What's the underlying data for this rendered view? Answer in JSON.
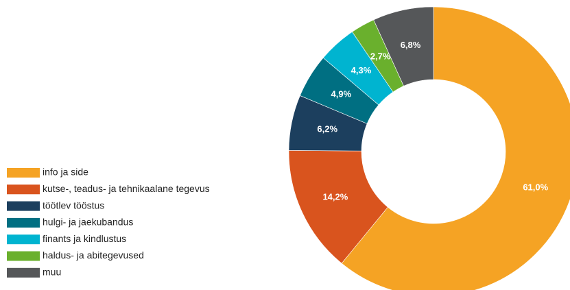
{
  "chart_data": {
    "type": "donut",
    "categories": [
      "info ja side",
      "kutse-, teadus- ja tehnikaalane tegevus",
      "töötlev tööstus",
      "hulgi- ja jaekubandus",
      "finants ja kindlustus",
      "haldus- ja abitegevused",
      "muu"
    ],
    "values": [
      61.0,
      14.2,
      6.2,
      4.9,
      4.3,
      2.7,
      6.8
    ],
    "value_labels": [
      "61,0%",
      "14,2%",
      "6,2%",
      "4,9%",
      "4,3%",
      "2,7%",
      "6,8%"
    ],
    "colors": [
      "#f5a324",
      "#d9541e",
      "#1c3f5e",
      "#006f82",
      "#00b4d0",
      "#6ab02d",
      "#555759"
    ],
    "legend": "left"
  }
}
